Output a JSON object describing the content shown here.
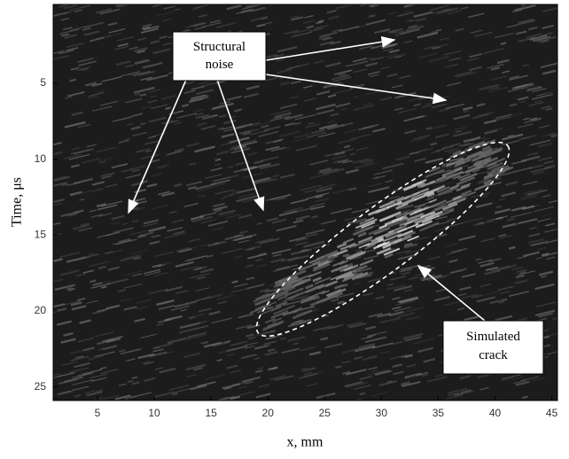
{
  "chart_data": {
    "type": "image",
    "xlabel": "x, mm",
    "ylabel": "Time, μs",
    "xlim": [
      1.1,
      45.5
    ],
    "xticks": [
      5,
      10,
      15,
      20,
      25,
      30,
      35,
      40,
      45
    ],
    "ylim": [
      -0.2,
      25.9
    ],
    "yticks": [
      5,
      10,
      15,
      20,
      25
    ],
    "y_reversed": true,
    "annotations": [
      "Structural noise",
      "Simulated crack"
    ]
  }
}
